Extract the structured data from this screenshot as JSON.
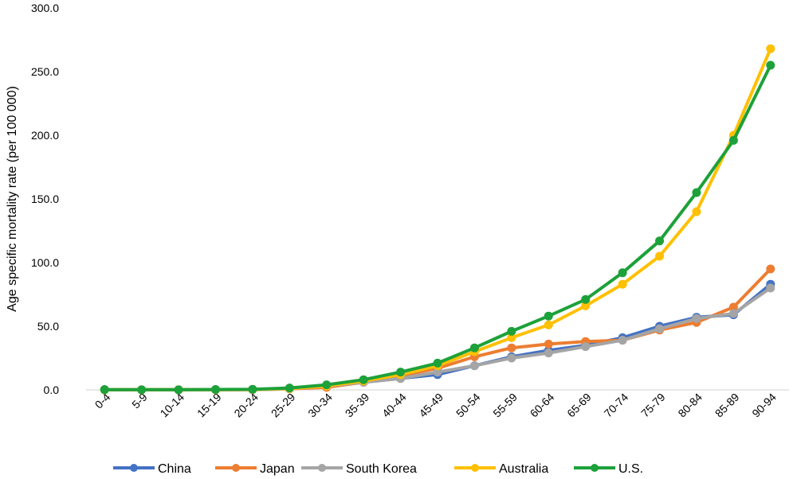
{
  "chart_data": {
    "type": "line",
    "title": "",
    "xlabel": "",
    "ylabel": "Age specific mortality rate (per 100 000)",
    "ylim": [
      0,
      300
    ],
    "yticks": [
      "0.0",
      "50.0",
      "100.0",
      "150.0",
      "200.0",
      "250.0",
      "300.0"
    ],
    "categories": [
      "0-4",
      "5-9",
      "10-14",
      "15-19",
      "20-24",
      "25-29",
      "30-34",
      "35-39",
      "40-44",
      "45-49",
      "50-54",
      "55-59",
      "60-64",
      "65-69",
      "70-74",
      "75-79",
      "80-84",
      "85-89",
      "90-94"
    ],
    "grid": false,
    "legend_position": "bottom",
    "series": [
      {
        "name": "China",
        "color": "#4472C4",
        "values": [
          0.2,
          0.1,
          0.1,
          0.2,
          0.3,
          1.0,
          3.0,
          6.0,
          9.0,
          12.0,
          19.0,
          26.0,
          31.0,
          35.0,
          41.0,
          50.0,
          57.0,
          59.0,
          83.0
        ]
      },
      {
        "name": "Japan",
        "color": "#ED7D31",
        "values": [
          0.1,
          0.1,
          0.1,
          0.1,
          0.2,
          0.8,
          2.0,
          6.0,
          11.0,
          17.0,
          26.0,
          33.0,
          36.0,
          38.0,
          39.0,
          47.0,
          53.0,
          65.0,
          95.0
        ]
      },
      {
        "name": "South Korea",
        "color": "#A5A5A5",
        "values": [
          0.1,
          0.1,
          0.1,
          0.1,
          0.2,
          0.8,
          3.0,
          6.0,
          9.0,
          14.0,
          19.0,
          25.0,
          29.0,
          34.0,
          39.0,
          48.0,
          56.0,
          60.0,
          80.0
        ]
      },
      {
        "name": "Australia",
        "color": "#FFC000",
        "values": [
          0.1,
          0.1,
          0.1,
          0.2,
          0.3,
          1.0,
          3.0,
          7.0,
          12.0,
          19.0,
          30.0,
          41.0,
          51.0,
          66.0,
          83.0,
          105.0,
          140.0,
          200.0,
          268.0
        ]
      },
      {
        "name": "U.S.",
        "color": "#1DA13A",
        "values": [
          0.2,
          0.1,
          0.1,
          0.3,
          0.5,
          1.5,
          4.0,
          8.0,
          14.0,
          21.0,
          33.0,
          46.0,
          58.0,
          71.0,
          92.0,
          117.0,
          155.0,
          196.0,
          255.0
        ]
      }
    ]
  }
}
